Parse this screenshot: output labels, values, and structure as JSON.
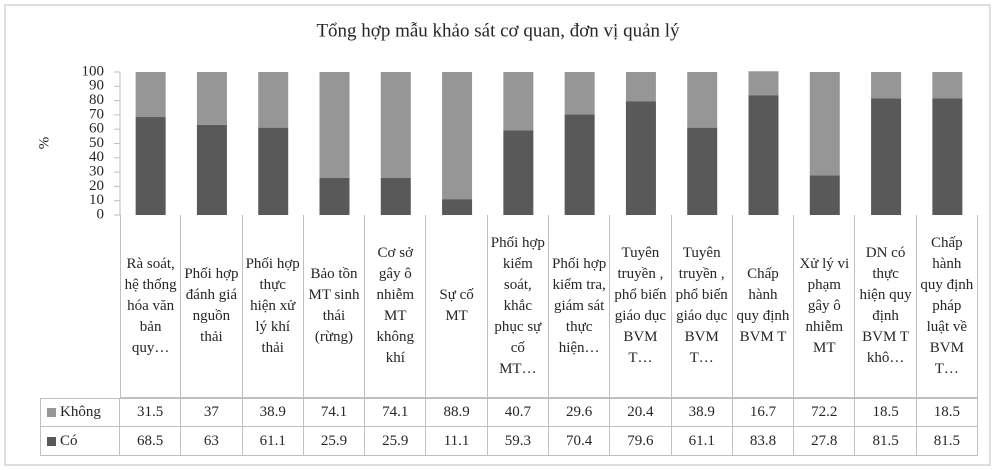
{
  "chart_data": {
    "type": "stacked_bar",
    "title": "Tổng hợp mẫu khảo sát cơ quan, đơn vị quản lý",
    "y_label": "%",
    "categories": [
      "Rà soát, hệ thống hóa văn bản quy…",
      "Phối hợp đánh giá nguồn thải",
      "Phối hợp thực hiện xử lý khí thải",
      "Bảo tồn MT sinh thái (rừng)",
      "Cơ sở gây ô nhiễm MT không khí",
      "Sự cố MT",
      "Phối hợp kiểm soát, khắc phục sự cố MT…",
      "Phối hợp kiểm tra, giám sát thực hiện…",
      "Tuyên truyền , phổ biến giáo dục BVM T…",
      "Tuyên truyền , phổ biến giáo dục BVM T…",
      "Chấp hành quy định BVM T",
      "Xử lý vi phạm gây ô nhiễm MT",
      "DN có thực hiện quy định BVM T khô…",
      "Chấp hành quy định pháp luật về BVM T…"
    ],
    "series": [
      {
        "name": "Không",
        "color": "#969696",
        "values": [
          31.5,
          37,
          38.9,
          74.1,
          74.1,
          88.9,
          40.7,
          29.6,
          20.4,
          38.9,
          16.7,
          72.2,
          18.5,
          18.5
        ]
      },
      {
        "name": "Có",
        "color": "#595959",
        "values": [
          68.5,
          63,
          61.1,
          25.9,
          25.9,
          11.1,
          59.3,
          70.4,
          79.6,
          61.1,
          83.8,
          27.8,
          81.5,
          81.5
        ]
      }
    ],
    "ylim": [
      0,
      100
    ],
    "yticks": [
      0,
      10,
      20,
      30,
      40,
      50,
      60,
      70,
      80,
      90,
      100
    ],
    "grid": false
  }
}
